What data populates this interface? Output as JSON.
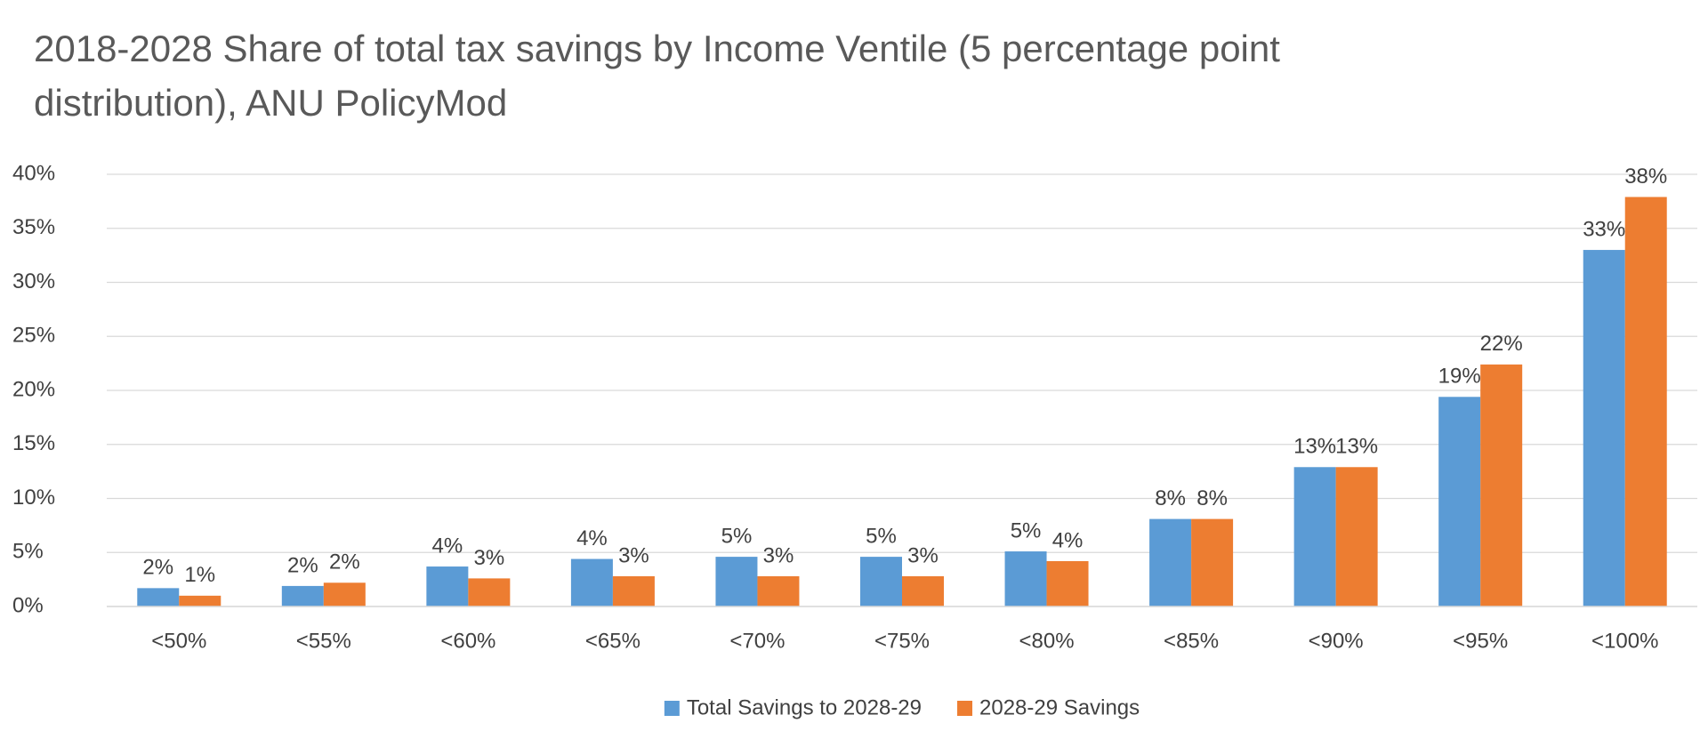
{
  "chart_data": {
    "type": "bar",
    "title": "2018-2028 Share of total tax savings by Income Ventile (5 percentage point distribution), ANU PolicyMod",
    "categories": [
      "<50%",
      "<55%",
      "<60%",
      "<65%",
      "<70%",
      "<75%",
      "<80%",
      "<85%",
      "<90%",
      "<95%",
      "<100%"
    ],
    "series": [
      {
        "name": "Total Savings to 2028-29",
        "color": "#5b9bd5",
        "values": [
          1.7,
          1.9,
          3.7,
          4.4,
          4.6,
          4.6,
          5.1,
          8.1,
          12.9,
          19.4,
          33.0
        ],
        "value_labels": [
          "2%",
          "2%",
          "4%",
          "4%",
          "5%",
          "5%",
          "5%",
          "8%",
          "13%",
          "19%",
          "33%"
        ]
      },
      {
        "name": "2028-29 Savings",
        "color": "#ed7d31",
        "values": [
          1.0,
          2.2,
          2.6,
          2.8,
          2.8,
          2.8,
          4.2,
          8.1,
          12.9,
          22.4,
          37.9
        ],
        "value_labels": [
          "1%",
          "2%",
          "3%",
          "3%",
          "3%",
          "3%",
          "4%",
          "8%",
          "13%",
          "22%",
          "38%"
        ]
      }
    ],
    "ylim": [
      0,
      40
    ],
    "yticks": [
      {
        "value": 0,
        "label": "0%"
      },
      {
        "value": 5,
        "label": "5%"
      },
      {
        "value": 10,
        "label": "10%"
      },
      {
        "value": 15,
        "label": "15%"
      },
      {
        "value": 20,
        "label": "20%"
      },
      {
        "value": 25,
        "label": "25%"
      },
      {
        "value": 30,
        "label": "30%"
      },
      {
        "value": 35,
        "label": "35%"
      },
      {
        "value": 40,
        "label": "40%"
      }
    ],
    "grid": true,
    "legend": "bottom"
  }
}
